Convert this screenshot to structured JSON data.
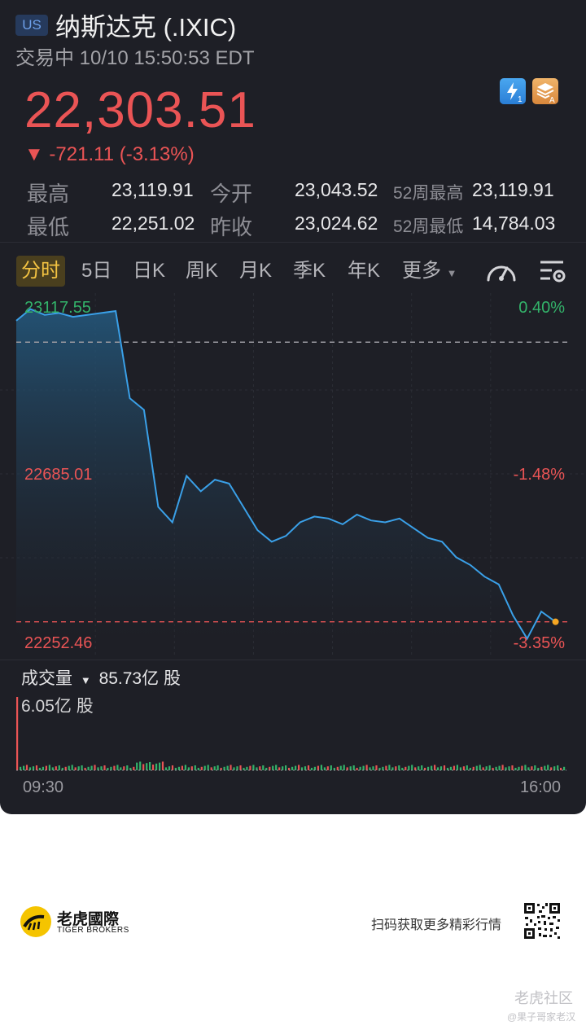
{
  "header": {
    "market_badge": "US",
    "title": "纳斯达克 (.IXIC)",
    "status": "交易中 10/10 15:50:53 EDT"
  },
  "quote": {
    "price": "22,303.51",
    "change": "▼ -721.11 (-3.13%)",
    "high_label": "最高",
    "high": "23,119.91",
    "open_label": "今开",
    "open": "23,043.52",
    "w52_high_label": "52周最高",
    "w52_high": "23,119.91",
    "low_label": "最低",
    "low": "22,251.02",
    "prev_close_label": "昨收",
    "prev_close": "23,024.62",
    "w52_low_label": "52周最低",
    "w52_low": "14,784.03"
  },
  "tabs": [
    {
      "label": "分时",
      "active": true
    },
    {
      "label": "5日"
    },
    {
      "label": "日K"
    },
    {
      "label": "周K"
    },
    {
      "label": "月K"
    },
    {
      "label": "季K"
    },
    {
      "label": "年K"
    },
    {
      "label": "更多"
    }
  ],
  "chart_axis": {
    "y_top": "23117.55",
    "y_mid": "22685.01",
    "y_bottom": "22252.46",
    "pct_top": "0.40%",
    "pct_mid": "-1.48%",
    "pct_bottom": "-3.35%",
    "x_start": "09:30",
    "x_end": "16:00"
  },
  "volume": {
    "label": "成交量",
    "total": "85.73亿 股",
    "max_label": "6.05亿 股"
  },
  "colors": {
    "background": "#1e1f26",
    "down": "#ea5455",
    "up": "#33b36a",
    "line": "#3aa0e8",
    "tab_active": "#f3c342"
  },
  "chart_data": {
    "type": "area",
    "title": "",
    "xlabel": "",
    "ylabel": "",
    "x_range": [
      "09:30",
      "16:00"
    ],
    "ylim": [
      22252.46,
      23117.55
    ],
    "prev_close": 23024.62,
    "last": 22303.51,
    "x": [
      "09:30",
      "09:40",
      "09:50",
      "10:00",
      "10:10",
      "10:20",
      "10:30",
      "10:40",
      "10:50",
      "11:00",
      "11:10",
      "11:20",
      "11:30",
      "11:40",
      "11:50",
      "12:00",
      "12:10",
      "12:20",
      "12:30",
      "12:40",
      "12:50",
      "13:00",
      "13:10",
      "13:20",
      "13:30",
      "13:40",
      "13:50",
      "14:00",
      "14:10",
      "14:20",
      "14:30",
      "14:40",
      "14:50",
      "15:00",
      "15:10",
      "15:20",
      "15:30",
      "15:40",
      "15:50"
    ],
    "values": [
      23080,
      23110,
      23095,
      23100,
      23090,
      23095,
      23100,
      23105,
      22880,
      22850,
      22600,
      22560,
      22680,
      22640,
      22670,
      22660,
      22600,
      22540,
      22510,
      22525,
      22560,
      22575,
      22570,
      22555,
      22580,
      22565,
      22560,
      22570,
      22545,
      22520,
      22510,
      22470,
      22450,
      22420,
      22400,
      22320,
      22260,
      22330,
      22303.51
    ],
    "volume_unit": "亿 股",
    "volume_max": 6.05,
    "volume_total": "85.73亿 股"
  },
  "footer": {
    "brand_cn": "老虎國際",
    "brand_en": "TIGER BROKERS",
    "scan_text": "扫码获取更多精彩行情",
    "watermark_cn": "老虎社区",
    "watermark_user": "@果子哥家老汉"
  }
}
